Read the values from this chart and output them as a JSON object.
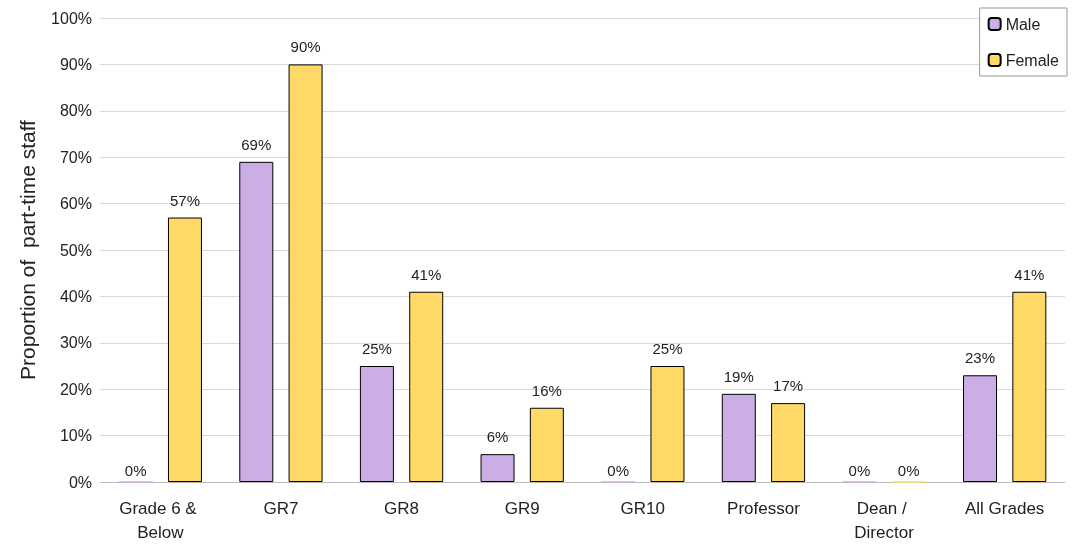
{
  "chart_data": {
    "type": "bar",
    "ylabel": "Proportion of  part-time staff",
    "categories": [
      "Grade 6 & Below",
      "GR7",
      "GR8",
      "GR9",
      "GR10",
      "Professor",
      "Dean / Director",
      "All Grades"
    ],
    "series": [
      {
        "name": "Male",
        "color": "#cbaee6",
        "values": [
          0,
          69,
          25,
          6,
          0,
          19,
          0,
          23
        ],
        "value_labels": [
          "0%",
          "69%",
          "25%",
          "6%",
          "0%",
          "19%",
          "0%",
          "23%"
        ]
      },
      {
        "name": "Female",
        "color": "#ffd966",
        "values": [
          57,
          90,
          41,
          16,
          25,
          17,
          0,
          41
        ],
        "value_labels": [
          "57%",
          "90%",
          "41%",
          "16%",
          "25%",
          "17%",
          "0%",
          "41%"
        ]
      }
    ],
    "ylim": [
      0,
      100
    ],
    "yticks": [
      {
        "value": 0,
        "label": "0%"
      },
      {
        "value": 10,
        "label": "10%"
      },
      {
        "value": 20,
        "label": "20%"
      },
      {
        "value": 30,
        "label": "30%"
      },
      {
        "value": 40,
        "label": "40%"
      },
      {
        "value": 50,
        "label": "50%"
      },
      {
        "value": 60,
        "label": "60%"
      },
      {
        "value": 70,
        "label": "70%"
      },
      {
        "value": 80,
        "label": "80%"
      },
      {
        "value": 90,
        "label": "90%"
      },
      {
        "value": 100,
        "label": "100%"
      }
    ],
    "grid": "y",
    "legend": "top right"
  }
}
